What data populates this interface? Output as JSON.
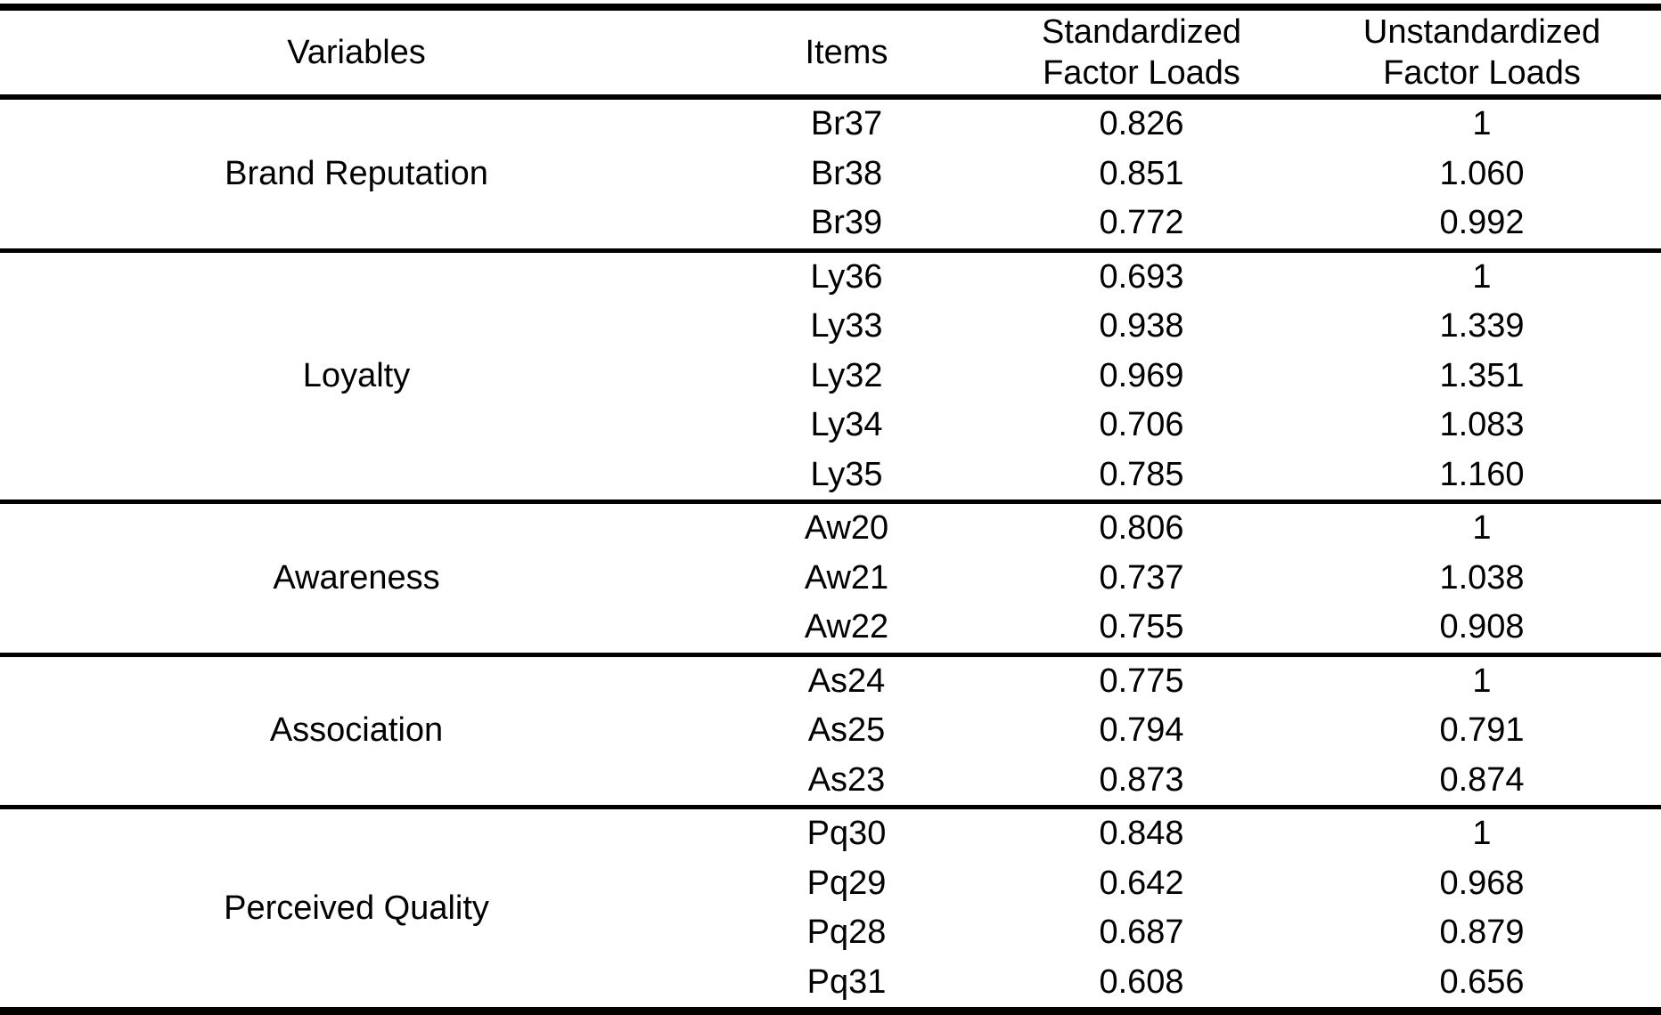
{
  "page": {
    "background_color": "#ffffff",
    "text_color": "#000000",
    "rule_color": "#000000"
  },
  "table": {
    "headers": {
      "variables": "Variables",
      "items": "Items",
      "standardized_line1": "Standardized",
      "standardized_line2": "Factor Loads",
      "unstandardized_line1": "Unstandardized",
      "unstandardized_line2": "Factor Loads"
    },
    "sections": [
      {
        "variable": "Brand Reputation",
        "rows": [
          {
            "item": "Br37",
            "standardized": "0.826",
            "unstandardized": "1"
          },
          {
            "item": "Br38",
            "standardized": "0.851",
            "unstandardized": "1.060"
          },
          {
            "item": "Br39",
            "standardized": "0.772",
            "unstandardized": "0.992"
          }
        ]
      },
      {
        "variable": "Loyalty",
        "rows": [
          {
            "item": "Ly36",
            "standardized": "0.693",
            "unstandardized": "1"
          },
          {
            "item": "Ly33",
            "standardized": "0.938",
            "unstandardized": "1.339"
          },
          {
            "item": "Ly32",
            "standardized": "0.969",
            "unstandardized": "1.351"
          },
          {
            "item": "Ly34",
            "standardized": "0.706",
            "unstandardized": "1.083"
          },
          {
            "item": "Ly35",
            "standardized": "0.785",
            "unstandardized": "1.160"
          }
        ]
      },
      {
        "variable": "Awareness",
        "rows": [
          {
            "item": "Aw20",
            "standardized": "0.806",
            "unstandardized": "1"
          },
          {
            "item": "Aw21",
            "standardized": "0.737",
            "unstandardized": "1.038"
          },
          {
            "item": "Aw22",
            "standardized": "0.755",
            "unstandardized": "0.908"
          }
        ]
      },
      {
        "variable": "Association",
        "rows": [
          {
            "item": "As24",
            "standardized": "0.775",
            "unstandardized": "1"
          },
          {
            "item": "As25",
            "standardized": "0.794",
            "unstandardized": "0.791"
          },
          {
            "item": "As23",
            "standardized": "0.873",
            "unstandardized": "0.874"
          }
        ]
      },
      {
        "variable": "Perceived Quality",
        "rows": [
          {
            "item": "Pq30",
            "standardized": "0.848",
            "unstandardized": "1"
          },
          {
            "item": "Pq29",
            "standardized": "0.642",
            "unstandardized": "0.968"
          },
          {
            "item": "Pq28",
            "standardized": "0.687",
            "unstandardized": "0.879"
          },
          {
            "item": "Pq31",
            "standardized": "0.608",
            "unstandardized": "0.656"
          }
        ]
      }
    ]
  }
}
